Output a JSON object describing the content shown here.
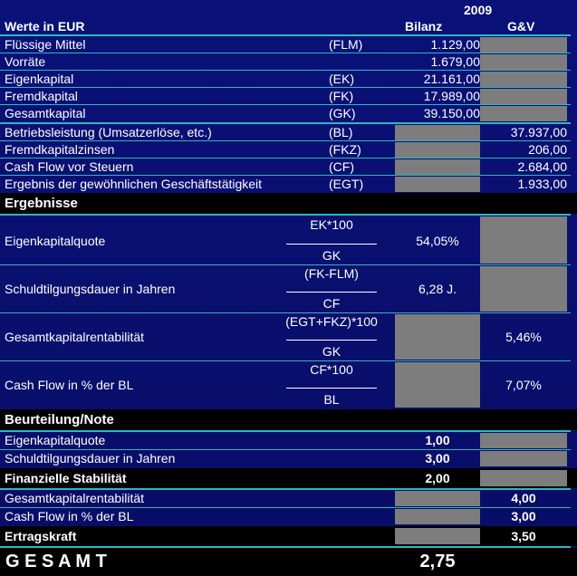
{
  "header": {
    "year": "2009",
    "title": "Werte in EUR",
    "col_bilanz": "Bilanz",
    "col_guv": "G&V"
  },
  "rows": [
    {
      "label": "Flüssige Mittel",
      "abbr": "(FLM)",
      "bilanz": "1.129,00",
      "guv": ""
    },
    {
      "label": "Vorräte",
      "abbr": "",
      "bilanz": "1.679,00",
      "guv": ""
    },
    {
      "label": "Eigenkapital",
      "abbr": "(EK)",
      "bilanz": "21.161,00",
      "guv": ""
    },
    {
      "label": "Fremdkapital",
      "abbr": "(FK)",
      "bilanz": "17.989,00",
      "guv": ""
    },
    {
      "label": "Gesamtkapital",
      "abbr": "(GK)",
      "bilanz": "39.150,00",
      "guv": ""
    },
    {
      "label": "Betriebsleistung (Umsatzerlöse, etc.)",
      "abbr": "(BL)",
      "bilanz": "",
      "guv": "37.937,00"
    },
    {
      "label": "Fremdkapitalzinsen",
      "abbr": "(FKZ)",
      "bilanz": "",
      "guv": "206,00"
    },
    {
      "label": "Cash Flow vor Steuern",
      "abbr": "(CF)",
      "bilanz": "",
      "guv": "2.684,00"
    },
    {
      "label": "Ergebnis der gewöhnlichen Geschäftstätigkeit",
      "abbr": "(EGT)",
      "bilanz": "",
      "guv": "1.933,00"
    }
  ],
  "ergebnisse": {
    "heading": "Ergebnisse",
    "items": [
      {
        "label": "Eigenkapitalquote",
        "num": "EK*100",
        "den": "GK",
        "bilanz": "54,05%",
        "guv": ""
      },
      {
        "label": "Schuldtilgungsdauer in Jahren",
        "num": "(FK-FLM)",
        "den": "CF",
        "bilanz": "6,28 J.",
        "guv": ""
      },
      {
        "label": "Gesamtkapitalrentabilität",
        "num": "(EGT+FKZ)*100",
        "den": "GK",
        "bilanz": "",
        "guv": "5,46%"
      },
      {
        "label": "Cash Flow in % der BL",
        "num": "CF*100",
        "den": "BL",
        "bilanz": "",
        "guv": "7,07%"
      }
    ]
  },
  "beurteilung": {
    "heading": "Beurteilung/Note",
    "rows": [
      {
        "label": "Eigenkapitalquote",
        "bilanz": "1,00",
        "guv": ""
      },
      {
        "label": "Schuldtilgungsdauer in Jahren",
        "bilanz": "3,00",
        "guv": ""
      },
      {
        "label": "Finanzielle Stabilität",
        "bilanz": "2,00",
        "guv": ""
      },
      {
        "label": "Gesamtkapitalrentabilität",
        "bilanz": "",
        "guv": "4,00"
      },
      {
        "label": "Cash Flow in % der BL",
        "bilanz": "",
        "guv": "3,00"
      },
      {
        "label": "Ertragskraft",
        "bilanz": "",
        "guv": "3,50"
      }
    ]
  },
  "gesamt": {
    "label": "G E S A M T",
    "value": "2,75"
  }
}
